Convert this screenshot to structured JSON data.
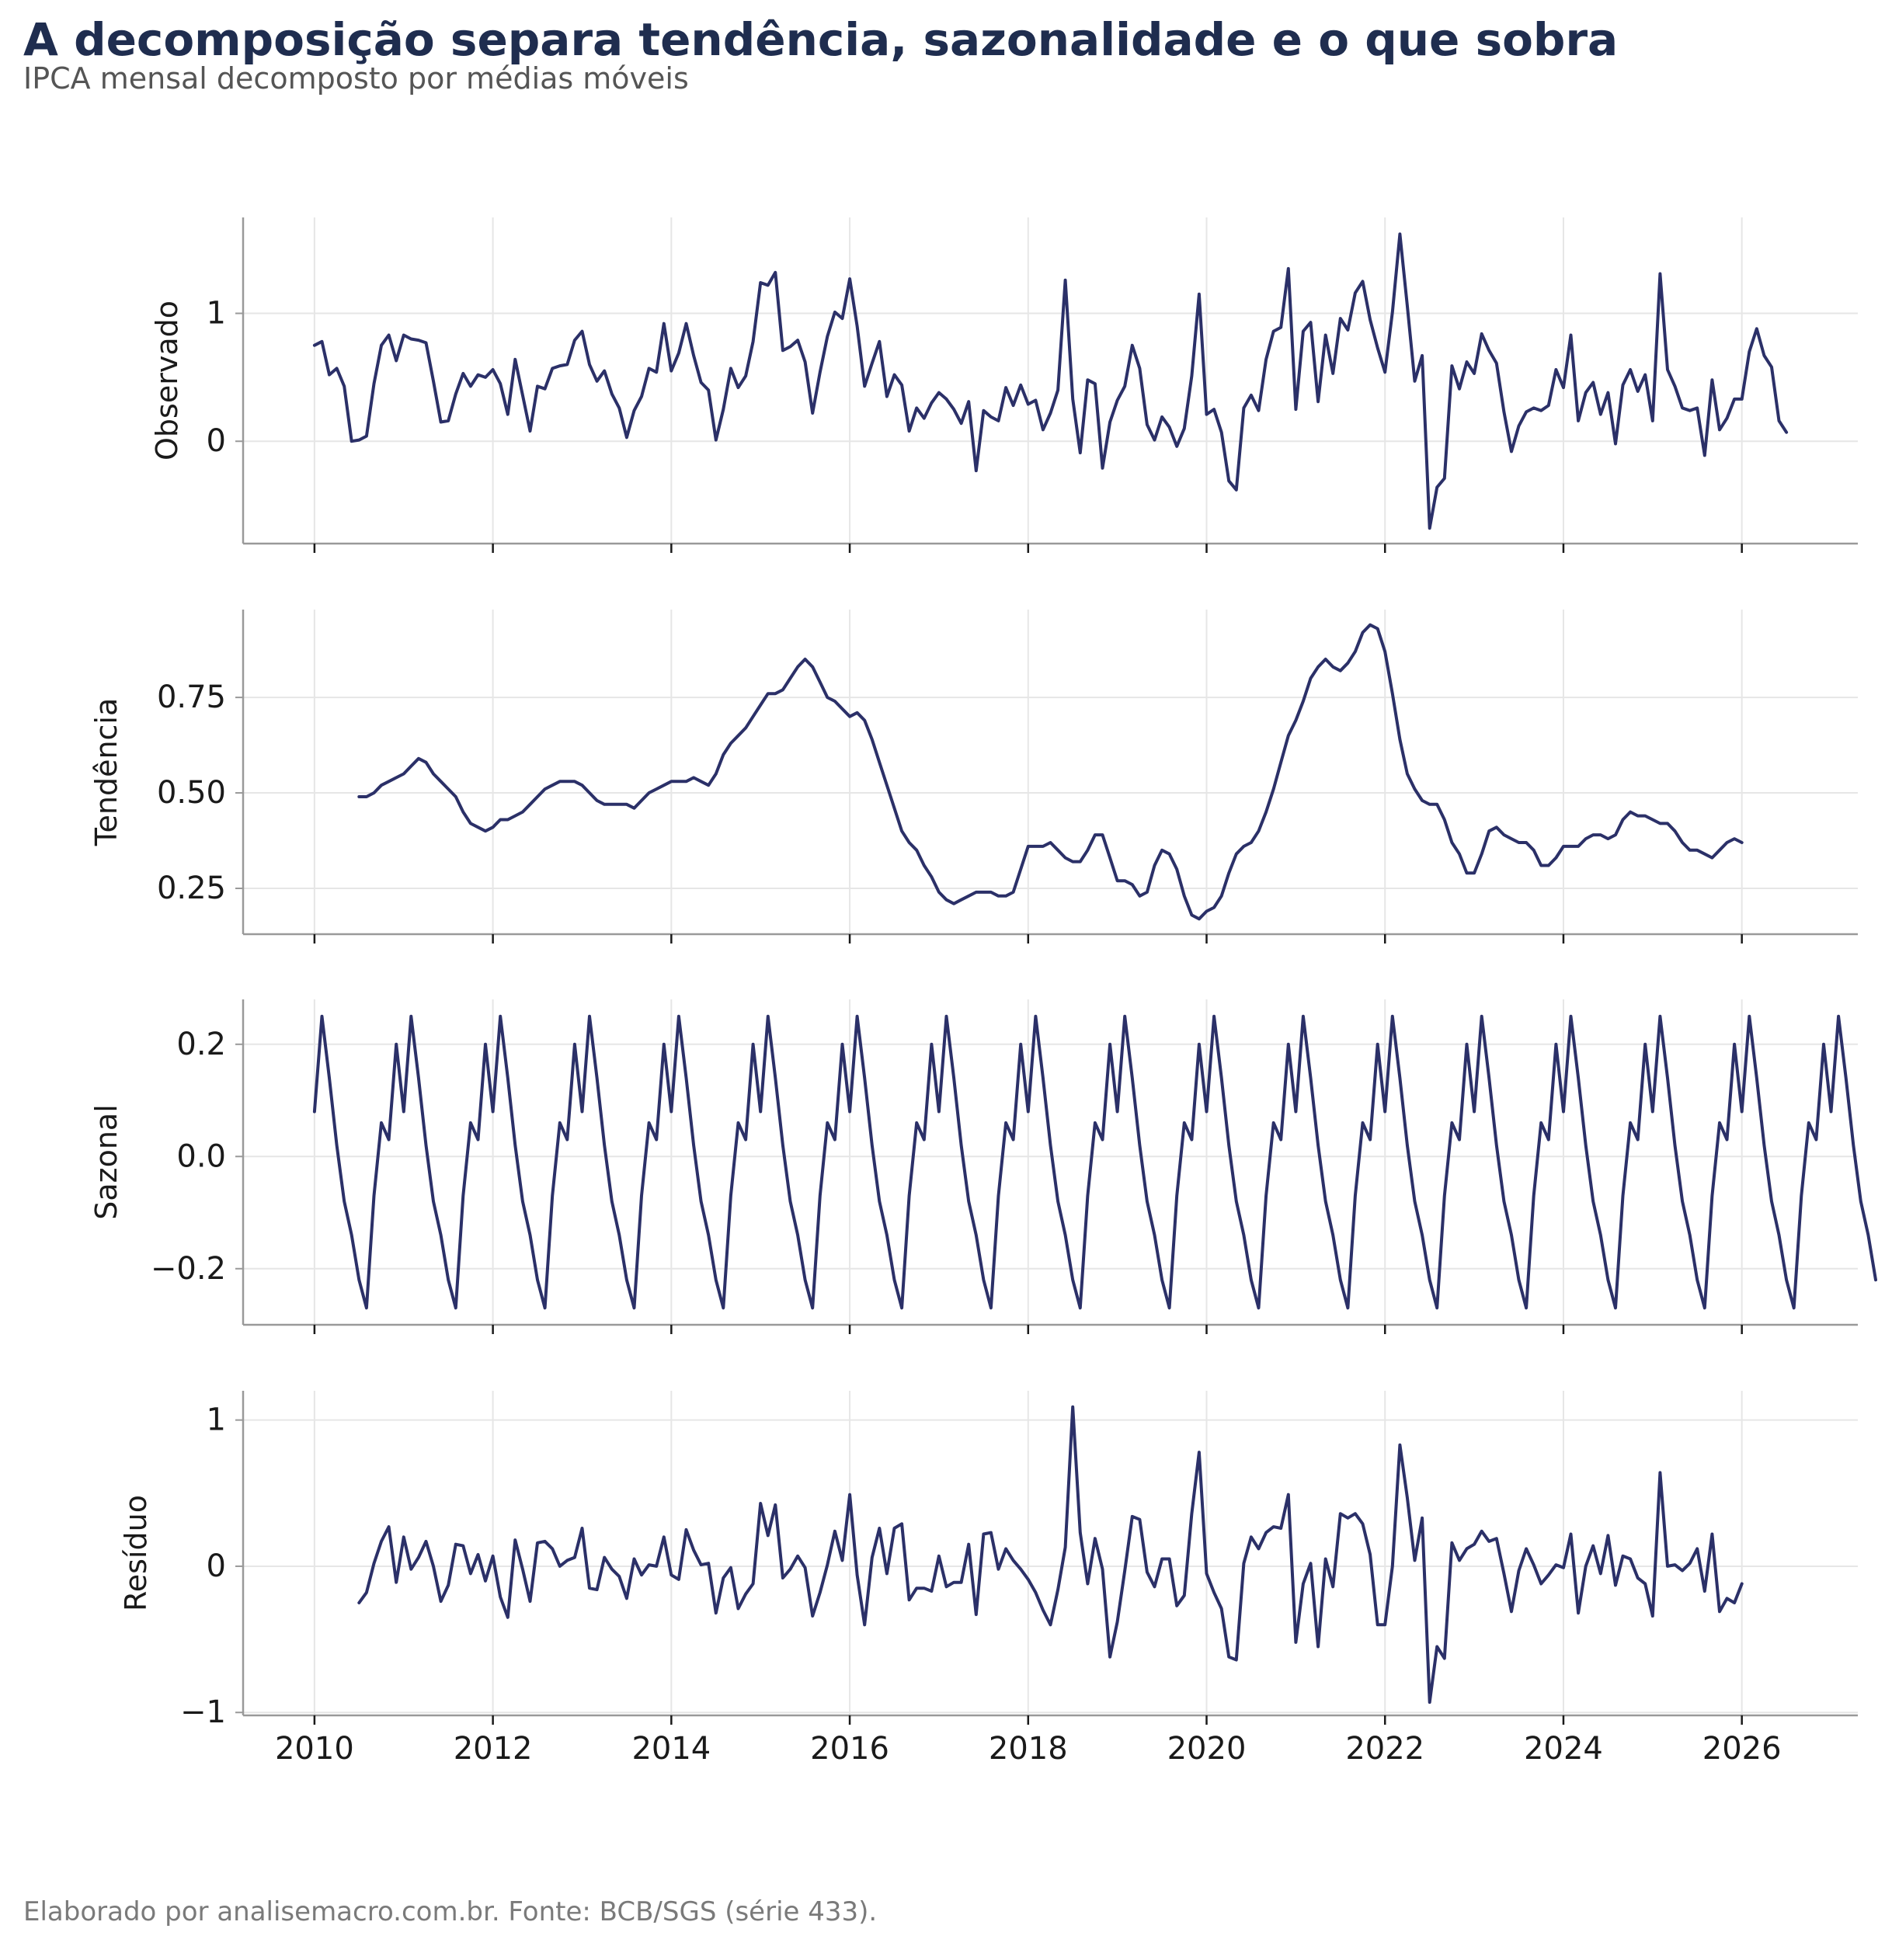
{
  "title": "A decomposição separa tendência, sazonalidade e o que sobra",
  "subtitle": "IPCA mensal decomposto por médias móveis",
  "caption": "Elaborado por analisemacro.com.br. Fonte: BCB/SGS (série 433).",
  "colors": {
    "line": "#2b3068",
    "grid": "#e6e6e6",
    "axis": "#999999",
    "text": "#1a1a1a"
  },
  "chart_data": {
    "type": "line",
    "x_start": "2010-01",
    "x_frequency": "monthly",
    "xlim": [
      2009.2,
      2027.3
    ],
    "x_ticks": [
      2010,
      2012,
      2014,
      2016,
      2018,
      2020,
      2022,
      2024,
      2026
    ],
    "x_tick_labels": [
      "2010",
      "2012",
      "2014",
      "2016",
      "2018",
      "2020",
      "2022",
      "2024",
      "2026"
    ],
    "grid": true,
    "panels": [
      {
        "ylabel": "Observado",
        "ylim": [
          -0.8,
          1.75
        ],
        "y_ticks": [
          0,
          1
        ],
        "y_tick_labels": [
          "0",
          "1"
        ],
        "values": [
          0.75,
          0.78,
          0.52,
          0.57,
          0.43,
          0.0,
          0.01,
          0.04,
          0.45,
          0.75,
          0.83,
          0.63,
          0.83,
          0.8,
          0.79,
          0.77,
          0.47,
          0.15,
          0.16,
          0.37,
          0.53,
          0.43,
          0.52,
          0.5,
          0.56,
          0.45,
          0.21,
          0.64,
          0.36,
          0.08,
          0.43,
          0.41,
          0.57,
          0.59,
          0.6,
          0.79,
          0.86,
          0.6,
          0.47,
          0.55,
          0.37,
          0.26,
          0.03,
          0.24,
          0.35,
          0.57,
          0.54,
          0.92,
          0.55,
          0.69,
          0.92,
          0.67,
          0.46,
          0.4,
          0.01,
          0.25,
          0.57,
          0.42,
          0.51,
          0.78,
          1.24,
          1.22,
          1.32,
          0.71,
          0.74,
          0.79,
          0.62,
          0.22,
          0.54,
          0.82,
          1.01,
          0.96,
          1.27,
          0.9,
          0.43,
          0.61,
          0.78,
          0.35,
          0.52,
          0.44,
          0.08,
          0.26,
          0.18,
          0.3,
          0.38,
          0.33,
          0.25,
          0.14,
          0.31,
          -0.23,
          0.24,
          0.19,
          0.16,
          0.42,
          0.28,
          0.44,
          0.29,
          0.32,
          0.09,
          0.22,
          0.4,
          1.26,
          0.33,
          -0.09,
          0.48,
          0.45,
          -0.21,
          0.15,
          0.32,
          0.43,
          0.75,
          0.57,
          0.13,
          0.01,
          0.19,
          0.11,
          -0.04,
          0.1,
          0.51,
          1.15,
          0.21,
          0.25,
          0.07,
          -0.31,
          -0.38,
          0.26,
          0.36,
          0.24,
          0.64,
          0.86,
          0.89,
          1.35,
          0.25,
          0.86,
          0.93,
          0.31,
          0.83,
          0.53,
          0.96,
          0.87,
          1.16,
          1.25,
          0.95,
          0.73,
          0.54,
          1.01,
          1.62,
          1.06,
          0.47,
          0.67,
          -0.68,
          -0.36,
          -0.29,
          0.59,
          0.41,
          0.62,
          0.53,
          0.84,
          0.71,
          0.61,
          0.23,
          -0.08,
          0.12,
          0.23,
          0.26,
          0.24,
          0.28,
          0.56,
          0.42,
          0.83,
          0.16,
          0.38,
          0.46,
          0.21,
          0.38,
          -0.02,
          0.44,
          0.56,
          0.39,
          0.52,
          0.16,
          1.31,
          0.56,
          0.43,
          0.26,
          0.24,
          0.26,
          -0.11,
          0.48,
          0.09,
          0.18,
          0.33,
          0.33,
          0.7,
          0.88,
          0.67,
          0.58,
          0.16,
          0.07
        ]
      },
      {
        "ylabel": "Tendência",
        "ylim": [
          0.13,
          0.98
        ],
        "y_ticks": [
          0.25,
          0.5,
          0.75
        ],
        "y_tick_labels": [
          "0.25",
          "0.50",
          "0.75"
        ],
        "values": [
          null,
          null,
          null,
          null,
          null,
          null,
          0.49,
          0.49,
          0.5,
          0.52,
          0.53,
          0.54,
          0.55,
          0.57,
          0.59,
          0.58,
          0.55,
          0.53,
          0.51,
          0.49,
          0.45,
          0.42,
          0.41,
          0.4,
          0.41,
          0.43,
          0.43,
          0.44,
          0.45,
          0.47,
          0.49,
          0.51,
          0.52,
          0.53,
          0.53,
          0.53,
          0.52,
          0.5,
          0.48,
          0.47,
          0.47,
          0.47,
          0.47,
          0.46,
          0.48,
          0.5,
          0.51,
          0.52,
          0.53,
          0.53,
          0.53,
          0.54,
          0.53,
          0.52,
          0.55,
          0.6,
          0.63,
          0.65,
          0.67,
          0.7,
          0.73,
          0.76,
          0.76,
          0.77,
          0.8,
          0.83,
          0.85,
          0.83,
          0.79,
          0.75,
          0.74,
          0.72,
          0.7,
          0.71,
          0.69,
          0.64,
          0.58,
          0.52,
          0.46,
          0.4,
          0.37,
          0.35,
          0.31,
          0.28,
          0.24,
          0.22,
          0.21,
          0.22,
          0.23,
          0.24,
          0.24,
          0.24,
          0.23,
          0.23,
          0.24,
          0.3,
          0.36,
          0.36,
          0.36,
          0.37,
          0.35,
          0.33,
          0.32,
          0.32,
          0.35,
          0.39,
          0.39,
          0.33,
          0.27,
          0.27,
          0.26,
          0.23,
          0.24,
          0.31,
          0.35,
          0.34,
          0.3,
          0.23,
          0.18,
          0.17,
          0.19,
          0.2,
          0.23,
          0.29,
          0.34,
          0.36,
          0.37,
          0.4,
          0.45,
          0.51,
          0.58,
          0.65,
          0.69,
          0.74,
          0.8,
          0.83,
          0.85,
          0.83,
          0.82,
          0.84,
          0.87,
          0.92,
          0.94,
          0.93,
          0.87,
          0.76,
          0.64,
          0.55,
          0.51,
          0.48,
          0.47,
          0.47,
          0.43,
          0.37,
          0.34,
          0.29,
          0.29,
          0.34,
          0.4,
          0.41,
          0.39,
          0.38,
          0.37,
          0.37,
          0.35,
          0.31,
          0.31,
          0.33,
          0.36,
          0.36,
          0.36,
          0.38,
          0.39,
          0.39,
          0.38,
          0.39,
          0.43,
          0.45,
          0.44,
          0.44,
          0.43,
          0.42,
          0.42,
          0.4,
          0.37,
          0.35,
          0.35,
          0.34,
          0.33,
          0.35,
          0.37,
          0.38,
          0.37,
          null,
          null,
          null,
          null,
          null,
          null
        ]
      },
      {
        "ylabel": "Sazonal",
        "ylim": [
          -0.3,
          0.28
        ],
        "y_ticks": [
          -0.2,
          0.0,
          0.2
        ],
        "y_tick_labels": [
          "−0.2",
          "0.0",
          "0.2"
        ],
        "values": [
          0.08,
          0.25,
          0.14,
          0.02,
          -0.08,
          -0.14,
          -0.22,
          -0.27,
          -0.07,
          0.06,
          0.03,
          0.2,
          0.08,
          0.25,
          0.14,
          0.02,
          -0.08,
          -0.14,
          -0.22,
          -0.27,
          -0.07,
          0.06,
          0.03,
          0.2,
          0.08,
          0.25,
          0.14,
          0.02,
          -0.08,
          -0.14,
          -0.22,
          -0.27,
          -0.07,
          0.06,
          0.03,
          0.2,
          0.08,
          0.25,
          0.14,
          0.02,
          -0.08,
          -0.14,
          -0.22,
          -0.27,
          -0.07,
          0.06,
          0.03,
          0.2,
          0.08,
          0.25,
          0.14,
          0.02,
          -0.08,
          -0.14,
          -0.22,
          -0.27,
          -0.07,
          0.06,
          0.03,
          0.2,
          0.08,
          0.25,
          0.14,
          0.02,
          -0.08,
          -0.14,
          -0.22,
          -0.27,
          -0.07,
          0.06,
          0.03,
          0.2,
          0.08,
          0.25,
          0.14,
          0.02,
          -0.08,
          -0.14,
          -0.22,
          -0.27,
          -0.07,
          0.06,
          0.03,
          0.2,
          0.08,
          0.25,
          0.14,
          0.02,
          -0.08,
          -0.14,
          -0.22,
          -0.27,
          -0.07,
          0.06,
          0.03,
          0.2,
          0.08,
          0.25,
          0.14,
          0.02,
          -0.08,
          -0.14,
          -0.22,
          -0.27,
          -0.07,
          0.06,
          0.03,
          0.2,
          0.08,
          0.25,
          0.14,
          0.02,
          -0.08,
          -0.14,
          -0.22,
          -0.27,
          -0.07,
          0.06,
          0.03,
          0.2,
          0.08,
          0.25,
          0.14,
          0.02,
          -0.08,
          -0.14,
          -0.22,
          -0.27,
          -0.07,
          0.06,
          0.03,
          0.2,
          0.08,
          0.25,
          0.14,
          0.02,
          -0.08,
          -0.14,
          -0.22,
          -0.27,
          -0.07,
          0.06,
          0.03,
          0.2,
          0.08,
          0.25,
          0.14,
          0.02,
          -0.08,
          -0.14,
          -0.22,
          -0.27,
          -0.07,
          0.06,
          0.03,
          0.2,
          0.08,
          0.25,
          0.14,
          0.02,
          -0.08,
          -0.14,
          -0.22,
          -0.27,
          -0.07,
          0.06,
          0.03,
          0.2,
          0.08,
          0.25,
          0.14,
          0.02,
          -0.08,
          -0.14,
          -0.22,
          -0.27,
          -0.07,
          0.06,
          0.03,
          0.2,
          0.08,
          0.25,
          0.14,
          0.02,
          -0.08,
          -0.14,
          -0.22,
          -0.27,
          -0.07,
          0.06,
          0.03,
          0.2,
          0.08,
          0.25,
          0.14,
          0.02,
          -0.08,
          -0.14,
          -0.22,
          -0.27,
          -0.07,
          0.06,
          0.03,
          0.2,
          0.08,
          0.25,
          0.14,
          0.02,
          -0.08,
          -0.14,
          -0.22
        ]
      },
      {
        "ylabel": "Resíduo",
        "ylim": [
          -1.02,
          1.2
        ],
        "y_ticks": [
          -1,
          0,
          1
        ],
        "y_tick_labels": [
          "−1",
          "0",
          "1"
        ],
        "values": [
          null,
          null,
          null,
          null,
          null,
          null,
          -0.25,
          -0.18,
          0.02,
          0.17,
          0.27,
          -0.11,
          0.2,
          -0.02,
          0.06,
          0.17,
          0.0,
          -0.24,
          -0.13,
          0.15,
          0.14,
          -0.05,
          0.08,
          -0.1,
          0.07,
          -0.21,
          -0.35,
          0.18,
          -0.02,
          -0.24,
          0.16,
          0.17,
          0.12,
          0.0,
          0.04,
          0.06,
          0.26,
          -0.15,
          -0.16,
          0.06,
          -0.02,
          -0.07,
          -0.22,
          0.05,
          -0.06,
          0.01,
          0.0,
          0.2,
          -0.06,
          -0.09,
          0.25,
          0.11,
          0.01,
          0.02,
          -0.32,
          -0.08,
          -0.01,
          -0.29,
          -0.19,
          -0.12,
          0.43,
          0.21,
          0.42,
          -0.08,
          -0.02,
          0.07,
          -0.01,
          -0.34,
          -0.18,
          0.01,
          0.24,
          0.04,
          0.49,
          -0.06,
          -0.4,
          0.06,
          0.26,
          -0.05,
          0.26,
          0.29,
          -0.23,
          -0.15,
          -0.15,
          -0.17,
          0.07,
          -0.14,
          -0.11,
          -0.11,
          0.15,
          -0.33,
          0.22,
          0.23,
          -0.02,
          0.12,
          0.04,
          -0.02,
          -0.09,
          -0.18,
          -0.3,
          -0.4,
          -0.16,
          0.13,
          1.09,
          0.23,
          -0.12,
          0.19,
          -0.02,
          -0.62,
          -0.38,
          -0.03,
          0.34,
          0.32,
          -0.04,
          -0.14,
          0.05,
          0.05,
          -0.27,
          -0.2,
          0.36,
          0.78,
          -0.05,
          -0.18,
          -0.29,
          -0.62,
          -0.64,
          0.02,
          0.2,
          0.12,
          0.23,
          0.27,
          0.26,
          0.49,
          -0.52,
          -0.12,
          0.02,
          -0.55,
          0.05,
          -0.14,
          0.36,
          0.33,
          0.36,
          0.29,
          0.08,
          -0.4,
          -0.4,
          0.0,
          0.83,
          0.47,
          0.04,
          0.33,
          -0.93,
          -0.55,
          -0.63,
          0.16,
          0.04,
          0.12,
          0.15,
          0.24,
          0.17,
          0.19,
          -0.05,
          -0.31,
          -0.03,
          0.12,
          0.01,
          -0.12,
          -0.06,
          0.01,
          -0.01,
          0.22,
          -0.32,
          0.0,
          0.14,
          -0.05,
          0.21,
          -0.13,
          0.07,
          0.05,
          -0.08,
          -0.12,
          -0.34,
          0.64,
          0.0,
          0.01,
          -0.03,
          0.02,
          0.12,
          -0.17,
          0.22,
          -0.31,
          -0.22,
          -0.25,
          -0.12,
          null,
          null,
          null,
          null,
          null,
          null
        ]
      }
    ]
  }
}
